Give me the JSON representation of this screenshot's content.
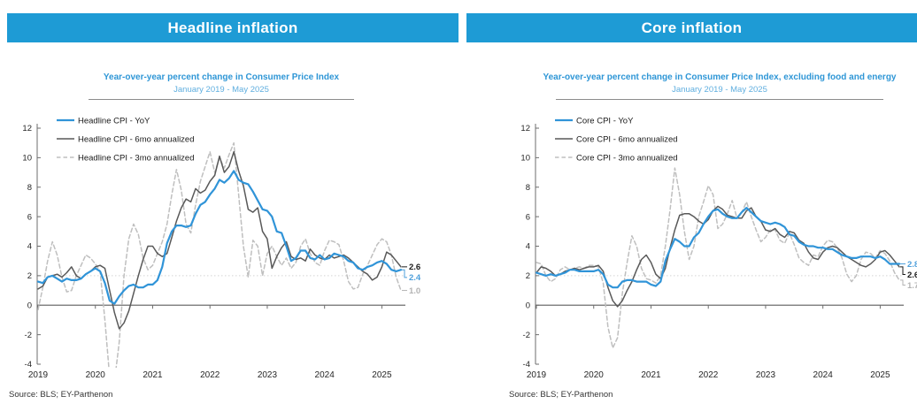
{
  "colors": {
    "header_bar": "#1E9BD5",
    "subtitle_blue": "#2E96D6",
    "date_blue": "#5FAEDF",
    "axis_gray": "#6E6E6E",
    "reference_dotted": "#D4D4D4"
  },
  "panels": [
    {
      "id": "headline",
      "header": "Headline inflation",
      "subtitle": "Year-over-year percent change in Consumer Price Index",
      "date_range": "January 2019 - May 2025",
      "source": "Source: BLS; EY-Parthenon"
    },
    {
      "id": "core",
      "header": "Core inflation",
      "subtitle": "Year-over-year percent change in Consumer Price Index, excluding food and energy",
      "date_range": "January 2019 - May 2025",
      "source": "Source: BLS; EY-Parthenon"
    }
  ],
  "chart_data": [
    {
      "type": "line",
      "title": "Year-over-year percent change in Consumer Price Index",
      "subtitle": "January 2019 - May 2025",
      "x": {
        "start": "2019-01",
        "end": "2025-05",
        "frequency": "monthly",
        "points": 77
      },
      "xtick_labels": [
        "2019",
        "2020",
        "2021",
        "2022",
        "2023",
        "2024",
        "2025"
      ],
      "ylim": [
        -4,
        12
      ],
      "yticks": [
        12,
        10,
        8,
        6,
        4,
        2,
        0,
        -2,
        -4
      ],
      "reference_line_y": 2,
      "grid": false,
      "legend_position": "top-left",
      "series": [
        {
          "name": "Headline CPI - YoY",
          "color": "#3094D8",
          "label_color": "#4D9FDB",
          "dash": false,
          "end_label": "2.4",
          "values": [
            1.6,
            1.5,
            1.9,
            2.0,
            1.8,
            1.6,
            1.8,
            1.7,
            1.7,
            1.8,
            2.1,
            2.3,
            2.5,
            2.3,
            1.5,
            0.3,
            0.1,
            0.6,
            1.0,
            1.3,
            1.4,
            1.2,
            1.2,
            1.4,
            1.4,
            1.7,
            2.6,
            4.2,
            5.0,
            5.4,
            5.4,
            5.3,
            5.4,
            6.2,
            6.8,
            7.0,
            7.5,
            7.9,
            8.5,
            8.3,
            8.6,
            9.1,
            8.5,
            8.3,
            8.2,
            7.7,
            7.1,
            6.5,
            6.4,
            6.0,
            5.0,
            4.9,
            4.0,
            3.0,
            3.2,
            3.7,
            3.7,
            3.2,
            3.1,
            3.4,
            3.1,
            3.2,
            3.5,
            3.4,
            3.3,
            3.0,
            2.9,
            2.5,
            2.4,
            2.6,
            2.7,
            2.9,
            3.0,
            2.8,
            2.4,
            2.3,
            2.4
          ]
        },
        {
          "name": "Headline CPI - 6mo annualized",
          "color": "#595959",
          "label_color": "#1A1A1A",
          "dash": false,
          "end_label": "2.6",
          "values": [
            1.1,
            1.3,
            1.9,
            2.0,
            2.1,
            1.9,
            2.2,
            2.6,
            2.0,
            1.8,
            2.1,
            2.3,
            2.6,
            2.7,
            2.5,
            1.0,
            -0.5,
            -1.6,
            -1.2,
            -0.4,
            0.8,
            2.0,
            3.1,
            4.0,
            4.0,
            3.5,
            3.3,
            3.5,
            4.6,
            5.7,
            6.6,
            7.2,
            7.0,
            7.9,
            7.6,
            7.8,
            8.4,
            8.8,
            10.1,
            9.0,
            9.4,
            10.4,
            9.1,
            8.1,
            6.5,
            6.3,
            6.6,
            5.0,
            4.5,
            2.5,
            3.3,
            3.9,
            4.3,
            3.3,
            3.1,
            3.2,
            3.0,
            3.8,
            3.4,
            3.2,
            3.1,
            3.4,
            3.2,
            3.3,
            3.4,
            3.2,
            2.9,
            2.6,
            2.3,
            2.1,
            1.7,
            1.9,
            2.6,
            3.6,
            3.4,
            3.0,
            2.6
          ]
        },
        {
          "name": "Headline CPI - 3mo annualized",
          "color": "#BFBFBF",
          "label_color": "#B3B3B3",
          "dash": true,
          "end_label": "1.0",
          "values": [
            -0.3,
            1.2,
            3.0,
            4.3,
            3.4,
            1.9,
            0.9,
            1.0,
            2.0,
            2.7,
            3.4,
            3.2,
            2.8,
            2.3,
            -1.0,
            -4.9,
            -5.2,
            -2.5,
            2.0,
            4.5,
            5.5,
            4.8,
            3.2,
            2.4,
            2.7,
            3.5,
            4.3,
            5.5,
            7.5,
            9.2,
            7.8,
            5.5,
            4.9,
            6.8,
            8.4,
            9.4,
            10.4,
            9.0,
            10.0,
            9.3,
            10.2,
            11.0,
            7.5,
            4.0,
            1.9,
            4.4,
            4.0,
            2.0,
            3.5,
            4.0,
            3.3,
            2.7,
            3.2,
            2.5,
            2.9,
            4.0,
            4.5,
            3.5,
            2.9,
            2.7,
            3.7,
            4.4,
            4.3,
            4.1,
            3.0,
            1.6,
            1.1,
            1.2,
            2.1,
            2.7,
            3.4,
            4.1,
            4.5,
            4.3,
            3.4,
            1.9,
            1.0
          ]
        }
      ]
    },
    {
      "type": "line",
      "title": "Year-over-year percent change in Consumer Price Index, excluding food and energy",
      "subtitle": "January 2019 - May 2025",
      "x": {
        "start": "2019-01",
        "end": "2025-05",
        "frequency": "monthly",
        "points": 77
      },
      "xtick_labels": [
        "2019",
        "2020",
        "2021",
        "2022",
        "2023",
        "2024",
        "2025"
      ],
      "ylim": [
        -4,
        12
      ],
      "yticks": [
        12,
        10,
        8,
        6,
        4,
        2,
        0,
        -2,
        -4
      ],
      "reference_line_y": 2,
      "grid": false,
      "legend_position": "top-left",
      "series": [
        {
          "name": "Core CPI - YoY",
          "color": "#3094D8",
          "label_color": "#4D9FDB",
          "dash": false,
          "end_label": "2.8",
          "values": [
            2.2,
            2.1,
            2.0,
            2.1,
            2.0,
            2.1,
            2.2,
            2.4,
            2.4,
            2.3,
            2.3,
            2.3,
            2.3,
            2.4,
            2.1,
            1.4,
            1.2,
            1.2,
            1.6,
            1.7,
            1.7,
            1.6,
            1.6,
            1.6,
            1.4,
            1.3,
            1.6,
            3.0,
            3.8,
            4.5,
            4.3,
            4.0,
            4.0,
            4.6,
            4.9,
            5.5,
            6.0,
            6.4,
            6.5,
            6.2,
            6.0,
            5.9,
            5.9,
            6.3,
            6.6,
            6.3,
            6.0,
            5.7,
            5.6,
            5.5,
            5.6,
            5.5,
            5.3,
            4.8,
            4.7,
            4.3,
            4.1,
            4.0,
            4.0,
            3.9,
            3.9,
            3.8,
            3.8,
            3.6,
            3.4,
            3.3,
            3.2,
            3.2,
            3.3,
            3.3,
            3.3,
            3.2,
            3.3,
            3.1,
            2.8,
            2.8,
            2.8
          ]
        },
        {
          "name": "Core CPI - 6mo annualized",
          "color": "#595959",
          "label_color": "#1A1A1A",
          "dash": false,
          "end_label": "2.6",
          "values": [
            2.2,
            2.6,
            2.5,
            2.3,
            2.0,
            2.1,
            2.3,
            2.4,
            2.5,
            2.4,
            2.5,
            2.6,
            2.6,
            2.7,
            2.3,
            1.2,
            0.3,
            -0.1,
            0.3,
            1.0,
            1.6,
            2.4,
            3.1,
            3.4,
            2.9,
            2.1,
            1.8,
            2.5,
            3.9,
            5.1,
            6.1,
            6.2,
            6.2,
            6.0,
            5.7,
            5.5,
            5.8,
            6.4,
            6.7,
            6.5,
            6.1,
            6.0,
            5.9,
            5.9,
            6.4,
            6.6,
            6.0,
            5.7,
            5.1,
            5.0,
            5.2,
            4.8,
            4.6,
            5.0,
            4.9,
            4.4,
            4.2,
            3.6,
            3.2,
            3.1,
            3.6,
            3.9,
            4.0,
            3.9,
            3.6,
            3.3,
            3.1,
            2.9,
            2.7,
            2.6,
            2.8,
            3.1,
            3.6,
            3.7,
            3.4,
            3.0,
            2.6
          ]
        },
        {
          "name": "Core CPI - 3mo annualized",
          "color": "#BFBFBF",
          "label_color": "#B3B3B3",
          "dash": true,
          "end_label": "1.7",
          "values": [
            2.9,
            2.8,
            2.0,
            1.6,
            1.8,
            2.4,
            2.6,
            2.4,
            2.5,
            2.6,
            2.5,
            2.7,
            2.7,
            2.6,
            1.5,
            -1.5,
            -2.9,
            -2.2,
            0.8,
            2.9,
            4.7,
            4.0,
            2.5,
            1.8,
            1.7,
            1.5,
            2.0,
            4.0,
            6.5,
            9.3,
            7.5,
            5.0,
            3.1,
            4.0,
            6.0,
            7.0,
            8.1,
            7.5,
            5.2,
            5.5,
            6.2,
            7.1,
            5.9,
            6.3,
            7.0,
            6.0,
            5.1,
            4.3,
            4.6,
            5.1,
            5.1,
            4.4,
            4.2,
            4.9,
            4.1,
            3.2,
            2.9,
            2.7,
            3.4,
            3.3,
            4.0,
            4.4,
            4.3,
            3.9,
            3.2,
            2.1,
            1.6,
            2.0,
            3.1,
            3.6,
            3.5,
            3.2,
            3.7,
            3.5,
            3.0,
            2.2,
            1.7
          ]
        }
      ]
    }
  ]
}
